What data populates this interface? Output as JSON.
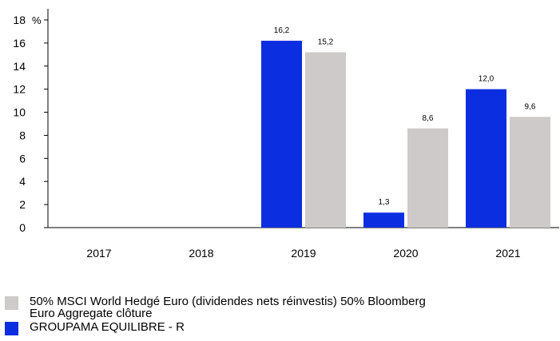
{
  "chart_data": {
    "type": "bar",
    "categories": [
      "2017",
      "2018",
      "2019",
      "2020",
      "2021"
    ],
    "ylabel": "%",
    "ylim": [
      0,
      18
    ],
    "yticks": [
      0,
      2,
      4,
      6,
      8,
      10,
      12,
      14,
      16,
      18
    ],
    "grid": false,
    "series": [
      {
        "name": "GROUPAMA EQUILIBRE - R",
        "color": "#0b2ee0",
        "values": [
          null,
          null,
          16.2,
          1.3,
          12.0
        ],
        "labels": [
          "",
          "",
          "16,2",
          "1,3",
          "12,0"
        ]
      },
      {
        "name": "50% MSCI World Hedgé Euro (dividendes nets réinvestis)  50% Bloomberg Euro Aggregate clôture",
        "color": "#cdcac9",
        "values": [
          null,
          null,
          15.2,
          8.6,
          9.6
        ],
        "labels": [
          "",
          "",
          "15,2",
          "8,6",
          "9,6"
        ]
      }
    ],
    "legend": [
      {
        "label": "50% MSCI World Hedgé Euro (dividendes nets réinvestis)  50% Bloomberg Euro Aggregate clôture",
        "color": "#cdcac9"
      },
      {
        "label": "GROUPAMA EQUILIBRE - R",
        "color": "#0b2ee0"
      }
    ]
  }
}
